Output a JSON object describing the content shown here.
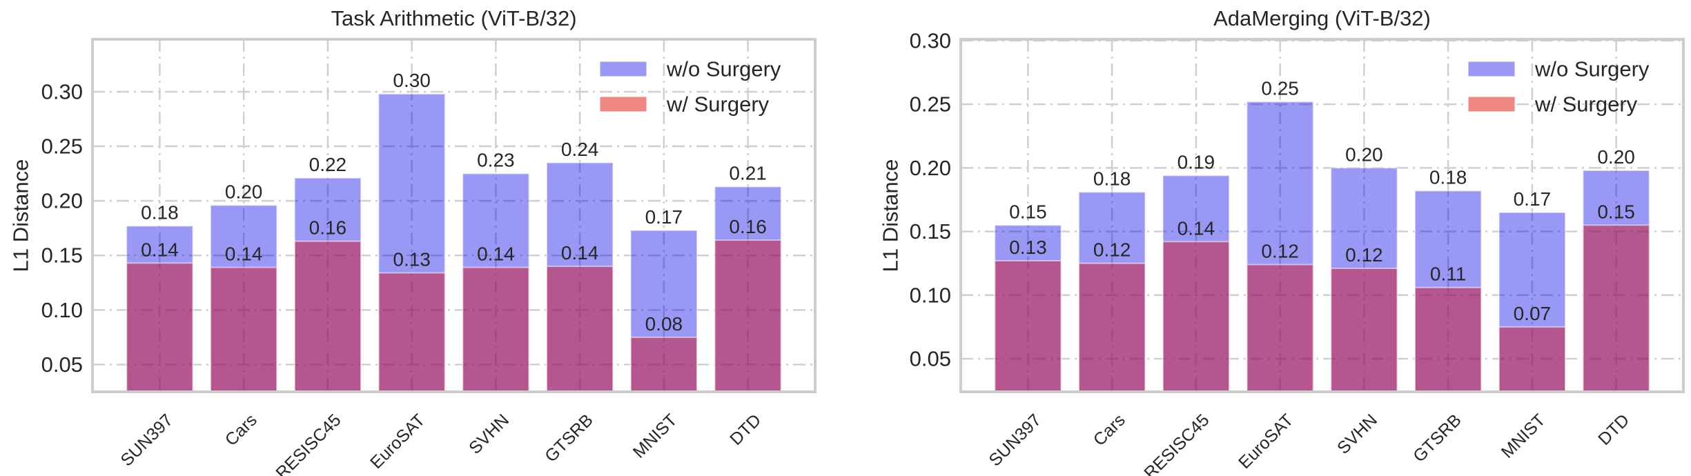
{
  "chart_data": [
    {
      "type": "bar",
      "title": "Task Arithmetic (ViT-B/32)",
      "xlabel": "",
      "ylabel": "L1 Distance",
      "ylim": [
        0.025,
        0.348
      ],
      "yticks": [
        "0.05",
        "0.10",
        "0.15",
        "0.20",
        "0.25",
        "0.30"
      ],
      "grid": true,
      "legend_position": "top-right",
      "categories": [
        "SUN397",
        "Cars",
        "RESISC45",
        "EuroSAT",
        "SVHN",
        "GTSRB",
        "MNIST",
        "DTD"
      ],
      "series": [
        {
          "name": "w/o Surgery",
          "color": "#9999f5",
          "values": [
            0.177,
            0.196,
            0.221,
            0.298,
            0.225,
            0.235,
            0.173,
            0.213
          ],
          "labels": [
            "0.18",
            "0.20",
            "0.22",
            "0.30",
            "0.23",
            "0.24",
            "0.17",
            "0.21"
          ]
        },
        {
          "name": "w/ Surgery",
          "color": "#ee8782",
          "values": [
            0.143,
            0.139,
            0.163,
            0.134,
            0.139,
            0.14,
            0.075,
            0.164
          ],
          "labels": [
            "0.14",
            "0.14",
            "0.16",
            "0.13",
            "0.14",
            "0.14",
            "0.08",
            "0.16"
          ]
        }
      ]
    },
    {
      "type": "bar",
      "title": "AdaMerging (ViT-B/32)",
      "xlabel": "",
      "ylabel": "L1 Distance",
      "ylim": [
        0.024,
        0.301
      ],
      "yticks": [
        "0.05",
        "0.10",
        "0.15",
        "0.20",
        "0.25",
        "0.30"
      ],
      "grid": true,
      "legend_position": "top-right",
      "categories": [
        "SUN397",
        "Cars",
        "RESISC45",
        "EuroSAT",
        "SVHN",
        "GTSRB",
        "MNIST",
        "DTD"
      ],
      "series": [
        {
          "name": "w/o Surgery",
          "color": "#9999f5",
          "values": [
            0.155,
            0.181,
            0.194,
            0.252,
            0.2,
            0.182,
            0.165,
            0.198
          ],
          "labels": [
            "0.15",
            "0.18",
            "0.19",
            "0.25",
            "0.20",
            "0.18",
            "0.17",
            "0.20"
          ]
        },
        {
          "name": "w/ Surgery",
          "color": "#ee8782",
          "values": [
            0.127,
            0.125,
            0.142,
            0.124,
            0.121,
            0.106,
            0.075,
            0.155
          ],
          "labels": [
            "0.13",
            "0.12",
            "0.14",
            "0.12",
            "0.12",
            "0.11",
            "0.07",
            "0.15"
          ]
        }
      ]
    }
  ]
}
